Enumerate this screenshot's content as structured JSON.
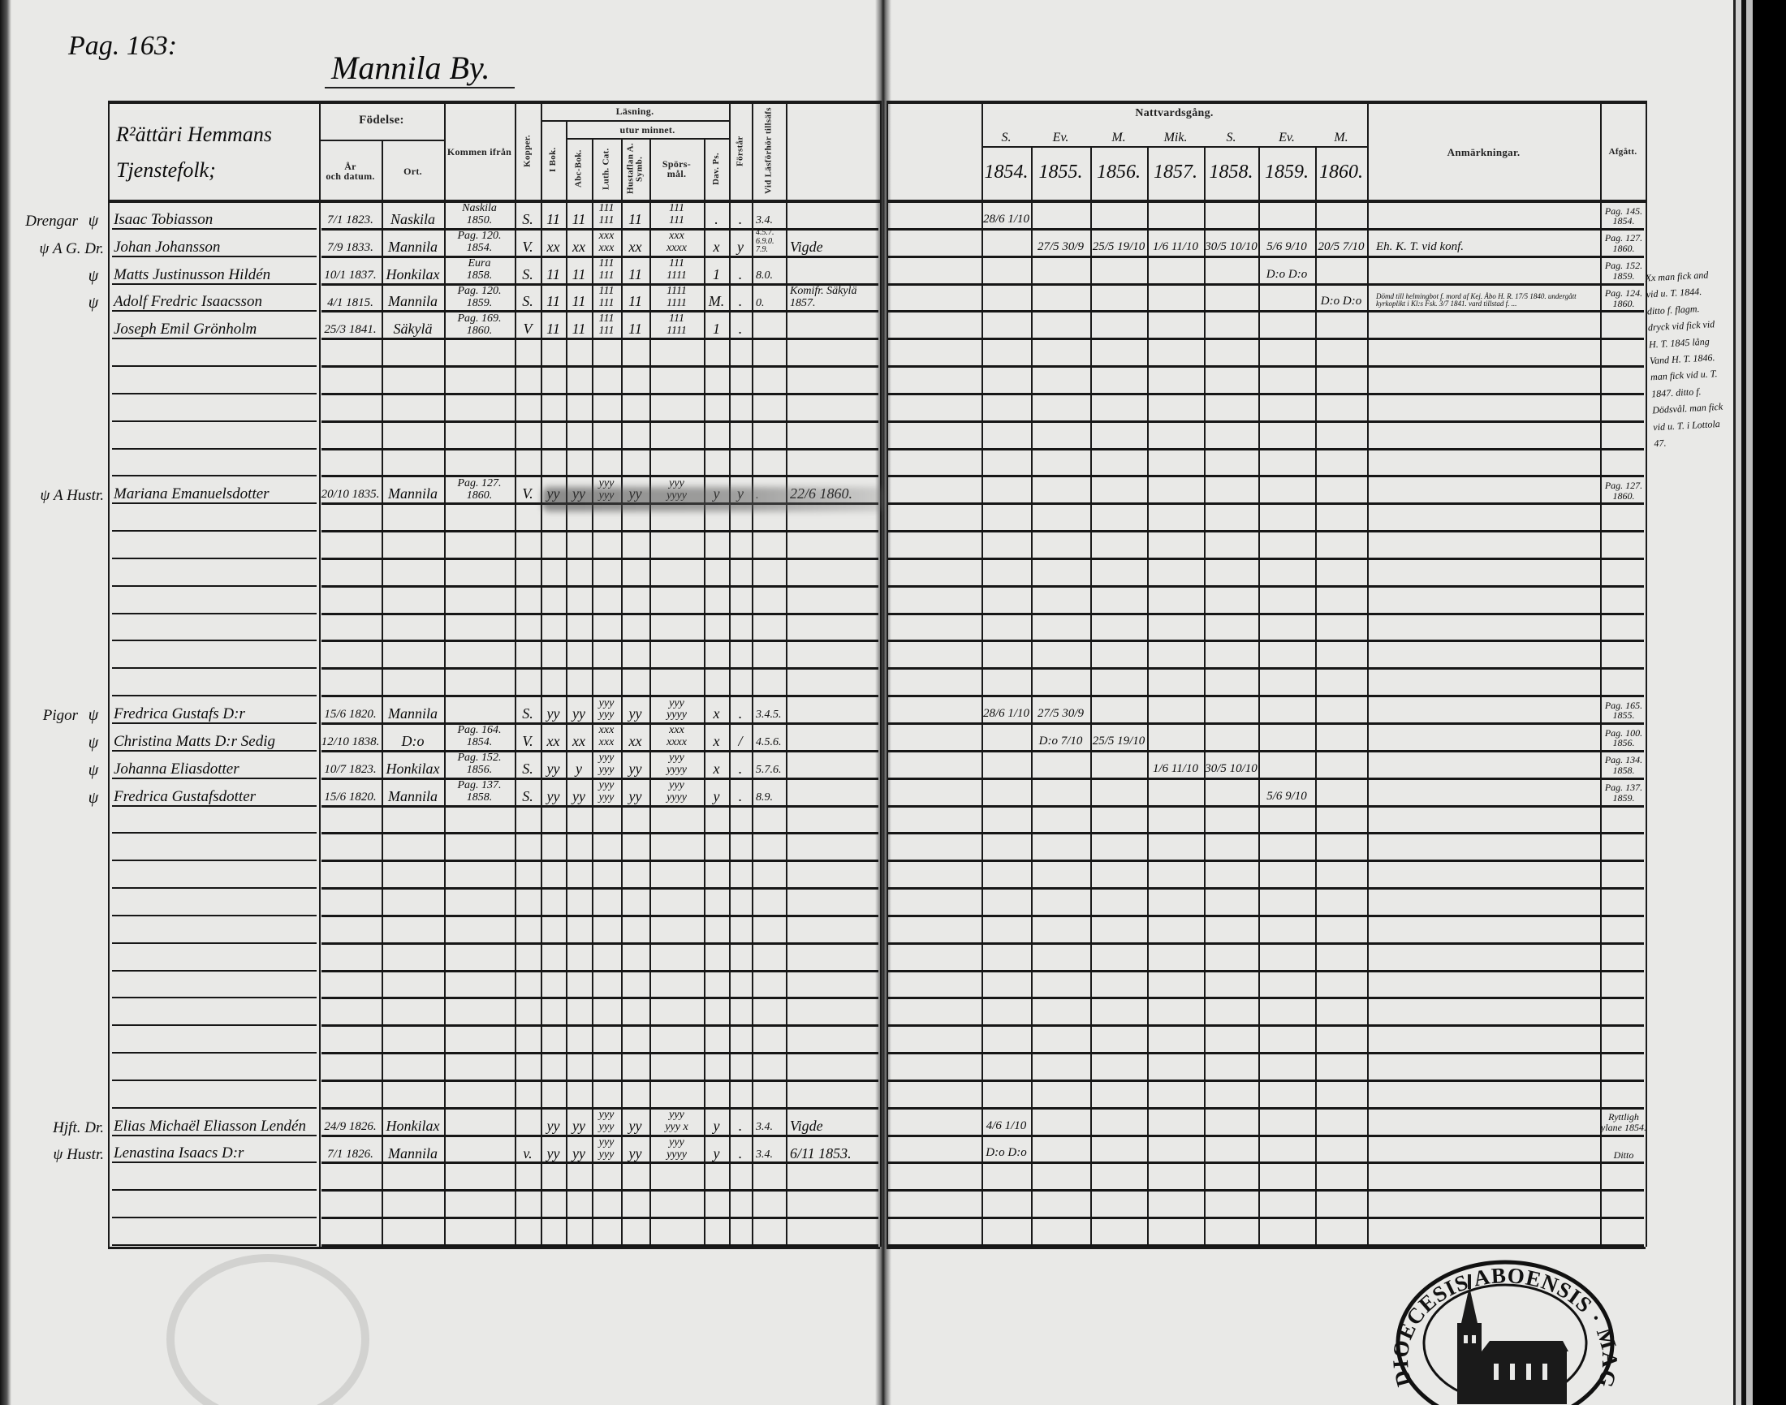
{
  "left_page": {
    "page_ref": "Pag. 163:",
    "village": "Mannila By.",
    "headers": {
      "name": "R²ättäri Hemmans\nTjenstefolk;",
      "birth": "Födelse:",
      "birth_date": "År\noch datum.",
      "birth_place": "Ort.",
      "from": "Kommen ifrån",
      "kopper": "Kopper.",
      "reading": "Läsning.",
      "in_book": "I Bok.",
      "by_heart": "utur minnet.",
      "abc": "Abc-Bok.",
      "cat": "Luth. Cat.",
      "symb": "Hustaflan A. Symb.",
      "sporsmal": "Spörs-\nmål.",
      "dav": "Dav. Ps.",
      "forstar": "Förstår",
      "forhor": "Vid Läsförhör tillsäfs"
    }
  },
  "right_page": {
    "headers": {
      "communion": "Nattvardsgång.",
      "feasts": [
        "S.",
        "Ev.",
        "M.",
        "Mik.",
        "S.",
        "Ev.",
        "M."
      ],
      "years": [
        "1854.",
        "1855.",
        "1856.",
        "1857.",
        "1858.",
        "1859.",
        "1860."
      ],
      "remarks": "Anmärkningar.",
      "departed": "Afgått."
    },
    "margin_note": "Xx man fick and vid u. T. 1844. ditto f. flagm. dryck vid fick vid H. T. 1845 lång Vand H. T. 1846. man fick vid u. T. 1847. ditto f. Dödsvål. man fick vid u. T. i Lottola 47."
  },
  "rows": [
    {
      "group": "Drengar",
      "mark": "ψ",
      "name": "Isaac Tobiasson",
      "cells": [
        "7/1 1823.",
        "Naskila",
        "Naskila\n1850.",
        "S.",
        "11",
        "11",
        "111\n111",
        "11",
        "111\n111",
        ".",
        ".",
        "3.4.",
        ""
      ],
      "communion": [
        "28/6 1/10",
        "",
        "",
        "",
        "",
        "",
        ""
      ],
      "remarks": "",
      "departed": "Pag. 145.\n1854."
    },
    {
      "group": "ψ A G. Dr.",
      "mark": "",
      "name": "Johan Johansson",
      "cells": [
        "7/9 1833.",
        "Mannila",
        "Pag. 120.\n1854.",
        "V.",
        "xx",
        "xx",
        "xxx\nxxx",
        "xx",
        "xxx\nxxxx",
        "x",
        "y",
        "4.5.7.\n6.9.0.\n7.9.",
        "Vigde"
      ],
      "communion": [
        "",
        "27/5 30/9",
        "25/5 19/10",
        "1/6 11/10",
        "30/5 10/10",
        "5/6 9/10",
        "20/5 7/10"
      ],
      "remarks": "Eh. K. T. vid konf.",
      "departed": "Pag. 127.\n1860."
    },
    {
      "group": "",
      "mark": "ψ",
      "name": "Matts Justinusson Hildén",
      "cells": [
        "10/1 1837.",
        "Honkilax",
        "Eura\n1858.",
        "S.",
        "11",
        "11",
        "111\n111",
        "11",
        "111\n1111",
        "1",
        ".",
        "8.0.",
        ""
      ],
      "communion": [
        "",
        "",
        "",
        "",
        "",
        "D:o D:o",
        ""
      ],
      "remarks": "",
      "departed": "Pag. 152.\n1859."
    },
    {
      "group": "",
      "mark": "ψ",
      "name": "Adolf Fredric Isaacsson",
      "cells": [
        "4/1 1815.",
        "Mannila",
        "Pag. 120.\n1859.",
        "S.",
        "11",
        "11",
        "111\n111",
        "11",
        "1111\n1111",
        "M.",
        ".",
        "0.",
        "Komifr. Säkylä\n1857."
      ],
      "communion": [
        "",
        "",
        "",
        "",
        "",
        "",
        "D:o D:o"
      ],
      "remarks": "Dömd till helmingbot f. mord af Kej. Åbo H. R. 17/5 1840. undergått kyrkoplikt i Kl:s Fsk. 3/7 1841. vard tillstad f. ...",
      "departed": "Pag. 124.\n1860."
    },
    {
      "group": "",
      "mark": "",
      "name": "Joseph Emil Grönholm",
      "cells": [
        "25/3 1841.",
        "Säkylä",
        "Pag. 169.\n1860.",
        "V",
        "11",
        "11",
        "111\n111",
        "11",
        "111\n1111",
        "1",
        ".",
        "",
        ""
      ],
      "communion": [
        "",
        "",
        "",
        "",
        "",
        "",
        ""
      ],
      "remarks": "",
      "departed": ""
    },
    {},
    {},
    {},
    {},
    {},
    {
      "group": "ψ A Hustr.",
      "mark": "",
      "name": "Mariana Emanuelsdotter",
      "cells": [
        "20/10 1835.",
        "Mannila",
        "Pag. 127.\n1860.",
        "V.",
        "yy",
        "yy",
        "yyy\nyyy",
        "yy",
        "yyy\nyyyy",
        "y",
        "y",
        ".",
        "22/6 1860."
      ],
      "communion": [
        "",
        "",
        "",
        "",
        "",
        "",
        ""
      ],
      "remarks": "",
      "departed": "Pag. 127.\n1860."
    },
    {},
    {},
    {},
    {},
    {},
    {},
    {},
    {
      "group": "Pigor",
      "mark": "ψ",
      "name": "Fredrica Gustafs D:r",
      "cells": [
        "15/6 1820.",
        "Mannila",
        "",
        "S.",
        "yy",
        "yy",
        "yyy\nyyy",
        "yy",
        "yyy\nyyyy",
        "x",
        ".",
        "3.4.5.",
        ""
      ],
      "communion": [
        "28/6 1/10",
        "27/5 30/9",
        "",
        "",
        "",
        "",
        ""
      ],
      "remarks": "",
      "departed": "Pag. 165.\n1855."
    },
    {
      "group": "",
      "mark": "ψ",
      "name": "Christina Matts D:r Sedig",
      "cells": [
        "12/10 1838.",
        "D:o",
        "Pag. 164.\n1854.",
        "V.",
        "xx",
        "xx",
        "xxx\nxxx",
        "xx",
        "xxx\nxxxx",
        "x",
        "/",
        "4.5.6.",
        ""
      ],
      "communion": [
        "",
        "D:o 7/10",
        "25/5 19/10",
        "",
        "",
        "",
        ""
      ],
      "remarks": "",
      "departed": "Pag. 100.\n1856."
    },
    {
      "group": "",
      "mark": "ψ",
      "name": "Johanna Eliasdotter",
      "cells": [
        "10/7 1823.",
        "Honkilax",
        "Pag. 152.\n1856.",
        "S.",
        "yy",
        "y",
        "yyy\nyyy",
        "yy",
        "yyy\nyyyy",
        "x",
        ".",
        "5.7.6.",
        ""
      ],
      "communion": [
        "",
        "",
        "",
        "1/6 11/10",
        "30/5 10/10",
        "",
        ""
      ],
      "remarks": "",
      "departed": "Pag. 134.\n1858."
    },
    {
      "group": "",
      "mark": "ψ",
      "name": "Fredrica Gustafsdotter",
      "cells": [
        "15/6 1820.",
        "Mannila",
        "Pag. 137.\n1858.",
        "S.",
        "yy",
        "yy",
        "yyy\nyyy",
        "yy",
        "yyy\nyyyy",
        "y",
        ".",
        "8.9.",
        ""
      ],
      "communion": [
        "",
        "",
        "",
        "",
        "",
        "5/6 9/10",
        ""
      ],
      "remarks": "",
      "departed": "Pag. 137.\n1859."
    },
    {},
    {},
    {},
    {},
    {},
    {},
    {},
    {},
    {},
    {},
    {},
    {
      "group": "Hjft. Dr.",
      "mark": "",
      "name": "Elias Michaël Eliasson Lendén",
      "cells": [
        "24/9 1826.",
        "Honkilax",
        "",
        "",
        "yy",
        "yy",
        "yyy\nyyy",
        "yy",
        "yyy\nyyy x",
        "y",
        ".",
        "3.4.",
        "Vigde"
      ],
      "communion": [
        "4/6 1/10",
        "",
        "",
        "",
        "",
        "",
        ""
      ],
      "remarks": "",
      "departed": "Ryttligh\nylane 1854."
    },
    {
      "group": "ψ Hustr.",
      "mark": "",
      "name": "Lenastina Isaacs D:r",
      "cells": [
        "7/1 1826.",
        "Mannila",
        "",
        "v.",
        "yy",
        "yy",
        "yyy\nyyy",
        "yy",
        "yyy\nyyyy",
        "y",
        ".",
        "3.4.",
        "6/11 1853."
      ],
      "communion": [
        "D:o D:o",
        "",
        "",
        "",
        "",
        "",
        ""
      ],
      "remarks": "",
      "departed": "Ditto"
    },
    {},
    {},
    {}
  ],
  "stamp": {
    "text": "DIOECESIS ABOENSIS · MAGNI PRINC. FINL. ·",
    "icon": "church-seal-icon"
  }
}
